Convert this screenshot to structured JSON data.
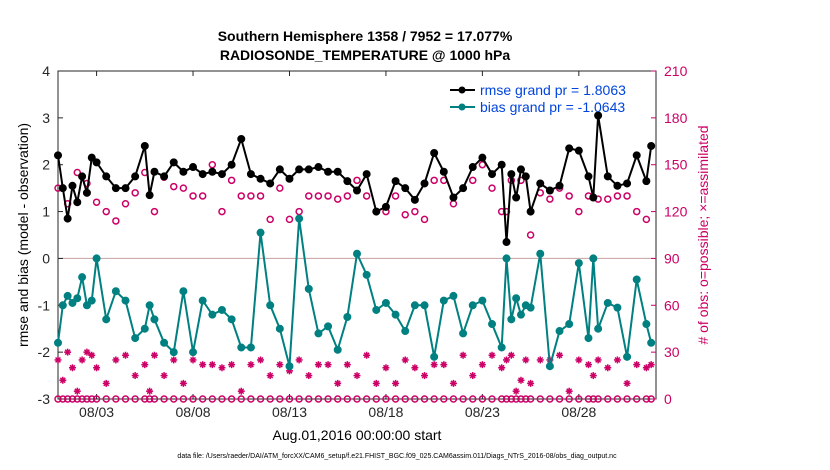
{
  "chart_data": {
    "type": "line",
    "title_line1": "Southern Hemisphere 1358 / 7952 = 17.077%",
    "title_line2": "RADIOSONDE_TEMPERATURE @ 1000 hPa",
    "xlabel": "Aug.01,2016 00:00:00 start",
    "ylabel_left": "rmse and bias (model - observation)",
    "ylabel_right": "# of obs: o=possible; ×=assimilated",
    "footer": "data file: /Users/raeder/DAI/ATM_forcXX/CAM6_setup/f.e21.FHIST_BGC.f09_025.CAM6assim.011/Diags_NTrS_2016-08/obs_diag_output.nc",
    "xticks": [
      "08/03",
      "08/08",
      "08/13",
      "08/18",
      "08/23",
      "08/28"
    ],
    "xtick_days": [
      3,
      8,
      13,
      18,
      23,
      28
    ],
    "xlim_days": [
      1.0,
      32.0
    ],
    "ylim_left": [
      -3,
      4
    ],
    "yticks_left": [
      "-3",
      "-2",
      "-1",
      "0",
      "1",
      "2",
      "3",
      "4"
    ],
    "ylim_right": [
      0,
      210
    ],
    "yticks_right": [
      "0",
      "30",
      "60",
      "90",
      "120",
      "150",
      "180",
      "210"
    ],
    "colors": {
      "rmse": "#000000",
      "bias": "#008080",
      "obs": "#cc0066",
      "legend_text": "#0044dd",
      "zero_line": "#c8a0a0"
    },
    "legend": {
      "placement": "top-right",
      "entries": [
        "rmse grand pr = 1.8063",
        "bias grand pr = -1.0643"
      ]
    },
    "series": [
      {
        "name": "rmse",
        "x": [
          1.0,
          1.25,
          1.5,
          1.75,
          2.0,
          2.25,
          2.5,
          2.75,
          3.0,
          3.5,
          4.0,
          4.5,
          5.0,
          5.5,
          5.75,
          6.0,
          6.5,
          7.0,
          7.5,
          8.0,
          8.5,
          9.0,
          9.5,
          10.0,
          10.5,
          11.0,
          11.5,
          12.0,
          12.5,
          13.0,
          13.5,
          14.0,
          14.5,
          15.0,
          15.5,
          16.0,
          16.5,
          17.0,
          17.5,
          18.0,
          18.5,
          19.0,
          19.5,
          20.0,
          20.5,
          21.0,
          21.5,
          22.0,
          22.5,
          23.0,
          23.5,
          24.0,
          24.25,
          24.5,
          24.75,
          25.0,
          25.25,
          25.5,
          26.0,
          26.5,
          27.0,
          27.5,
          28.0,
          28.5,
          28.75,
          29.0,
          29.5,
          30.0,
          30.5,
          31.0,
          31.5,
          31.75
        ],
        "values": [
          2.2,
          1.5,
          0.85,
          1.55,
          1.2,
          1.75,
          1.4,
          2.15,
          2.05,
          1.75,
          1.5,
          1.5,
          1.75,
          2.4,
          1.35,
          1.85,
          1.75,
          2.05,
          1.85,
          1.95,
          1.8,
          1.85,
          1.8,
          2.0,
          2.55,
          1.8,
          1.7,
          1.6,
          1.9,
          1.7,
          1.9,
          1.9,
          1.95,
          1.85,
          1.85,
          1.65,
          1.45,
          1.8,
          1.0,
          1.1,
          1.65,
          1.5,
          1.25,
          1.6,
          2.25,
          1.85,
          1.3,
          1.5,
          1.95,
          2.15,
          1.8,
          2.0,
          0.35,
          1.8,
          1.3,
          1.9,
          1.75,
          1.0,
          1.6,
          1.45,
          1.55,
          2.35,
          2.3,
          1.75,
          1.3,
          3.05,
          1.75,
          1.55,
          1.6,
          2.2,
          1.65,
          2.4
        ]
      },
      {
        "name": "bias",
        "x": [
          1.0,
          1.25,
          1.5,
          1.75,
          2.0,
          2.25,
          2.5,
          2.75,
          3.0,
          3.5,
          4.0,
          4.5,
          5.0,
          5.5,
          5.75,
          6.0,
          6.5,
          7.0,
          7.5,
          8.0,
          8.5,
          9.0,
          9.5,
          10.0,
          10.5,
          11.0,
          11.5,
          12.0,
          12.5,
          13.0,
          13.5,
          14.0,
          14.5,
          15.0,
          15.5,
          16.0,
          16.5,
          17.0,
          17.5,
          18.0,
          18.5,
          19.0,
          19.5,
          20.0,
          20.5,
          21.0,
          21.5,
          22.0,
          22.5,
          23.0,
          23.5,
          24.0,
          24.25,
          24.5,
          24.75,
          25.0,
          25.25,
          25.5,
          26.0,
          26.5,
          27.0,
          27.5,
          28.0,
          28.5,
          28.75,
          29.0,
          29.5,
          30.0,
          30.5,
          31.0,
          31.5,
          31.75
        ],
        "values": [
          -1.8,
          -1.0,
          -0.8,
          -0.95,
          -0.85,
          -0.4,
          -1.0,
          -0.9,
          0.0,
          -1.3,
          -0.7,
          -0.9,
          -1.7,
          -1.5,
          -1.0,
          -1.3,
          -1.8,
          -2.0,
          -0.7,
          -2.0,
          -0.9,
          -1.2,
          -1.1,
          -1.3,
          -1.9,
          -1.9,
          0.55,
          -1.0,
          -1.5,
          -2.3,
          0.85,
          -0.65,
          -1.6,
          -1.45,
          -1.95,
          -1.25,
          0.1,
          -0.35,
          -1.1,
          -0.95,
          -1.2,
          -1.55,
          -1.0,
          -1.0,
          -2.1,
          -0.9,
          -0.8,
          -1.6,
          -1.0,
          -0.9,
          -1.4,
          -1.9,
          0.0,
          -1.3,
          -0.85,
          -1.2,
          -1.0,
          -1.05,
          0.1,
          -2.3,
          -1.55,
          -1.4,
          -0.1,
          -1.7,
          0.0,
          -1.5,
          -0.95,
          -1.05,
          -2.1,
          -0.45,
          -1.4,
          -1.8
        ]
      },
      {
        "name": "possible",
        "x": [
          1.0,
          1.5,
          2.0,
          2.5,
          3.0,
          3.5,
          4.0,
          4.5,
          5.0,
          5.5,
          6.0,
          6.5,
          7.0,
          7.5,
          8.0,
          8.5,
          9.0,
          9.5,
          10.0,
          10.5,
          11.0,
          11.5,
          12.0,
          12.5,
          13.0,
          13.5,
          14.0,
          14.5,
          15.0,
          15.5,
          16.0,
          16.5,
          17.0,
          17.5,
          18.0,
          18.5,
          19.0,
          19.5,
          20.0,
          20.5,
          21.0,
          21.5,
          22.0,
          22.5,
          23.0,
          23.5,
          24.0,
          24.25,
          24.5,
          25.0,
          25.5,
          26.0,
          26.5,
          27.0,
          27.5,
          28.0,
          28.5,
          29.0,
          29.5,
          30.0,
          30.5,
          31.0,
          31.5
        ],
        "values": [
          135,
          125,
          145,
          138,
          126,
          120,
          114,
          125,
          132,
          145,
          120,
          142,
          136,
          135,
          130,
          130,
          150,
          120,
          140,
          130,
          130,
          130,
          115,
          135,
          115,
          120,
          130,
          130,
          130,
          128,
          130,
          140,
          130,
          120,
          120,
          130,
          118,
          120,
          115,
          140,
          140,
          125,
          135,
          140,
          150,
          135,
          120,
          120,
          140,
          140,
          105,
          132,
          128,
          135,
          130,
          120,
          130,
          128,
          128,
          130,
          130,
          120,
          115
        ]
      },
      {
        "name": "assimilated",
        "x": [
          1.0,
          1.25,
          1.5,
          1.75,
          2.0,
          2.25,
          2.5,
          2.75,
          3.0,
          3.5,
          4.0,
          4.5,
          5.0,
          5.5,
          5.75,
          6.0,
          6.5,
          7.0,
          7.5,
          8.0,
          8.5,
          9.0,
          9.5,
          10.0,
          10.5,
          11.0,
          11.5,
          12.0,
          12.5,
          13.0,
          13.5,
          14.0,
          14.5,
          15.0,
          15.5,
          16.0,
          16.5,
          17.0,
          17.5,
          18.0,
          18.5,
          19.0,
          19.5,
          20.0,
          20.5,
          21.0,
          21.5,
          22.0,
          22.5,
          23.0,
          23.5,
          24.0,
          24.25,
          24.5,
          24.75,
          25.0,
          25.25,
          25.5,
          26.0,
          26.5,
          27.0,
          27.5,
          28.0,
          28.5,
          28.75,
          29.0,
          29.5,
          30.0,
          30.5,
          31.0,
          31.5,
          31.75
        ],
        "values": [
          25,
          12,
          30,
          20,
          5,
          25,
          30,
          28,
          20,
          10,
          25,
          28,
          15,
          22,
          5,
          28,
          15,
          25,
          10,
          25,
          22,
          22,
          20,
          22,
          5,
          22,
          25,
          15,
          22,
          18,
          25,
          15,
          22,
          22,
          10,
          22,
          15,
          28,
          10,
          20,
          10,
          25,
          20,
          15,
          22,
          22,
          10,
          28,
          15,
          22,
          28,
          20,
          25,
          28,
          5,
          12,
          25,
          10,
          25,
          25,
          28,
          5,
          25,
          22,
          15,
          25,
          20,
          25,
          10,
          22,
          20,
          22
        ]
      }
    ]
  }
}
